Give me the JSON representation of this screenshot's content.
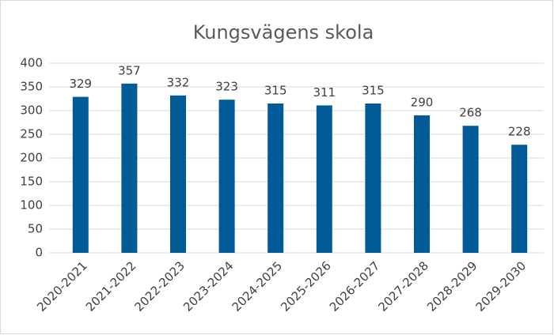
{
  "chart_data": {
    "type": "bar",
    "title": "Kungsvägens skola",
    "categories": [
      "2020-2021",
      "2021-2022",
      "2022-2023",
      "2023-2024",
      "2024-2025",
      "2025-2026",
      "2026-2027",
      "2027-2028",
      "2028-2029",
      "2029-2030"
    ],
    "values": [
      329,
      357,
      332,
      323,
      315,
      311,
      315,
      290,
      268,
      228
    ],
    "color": "#005b96",
    "ylim": [
      0,
      400
    ],
    "yticks": [
      0,
      50,
      100,
      150,
      200,
      250,
      300,
      350,
      400
    ],
    "grid": true
  }
}
